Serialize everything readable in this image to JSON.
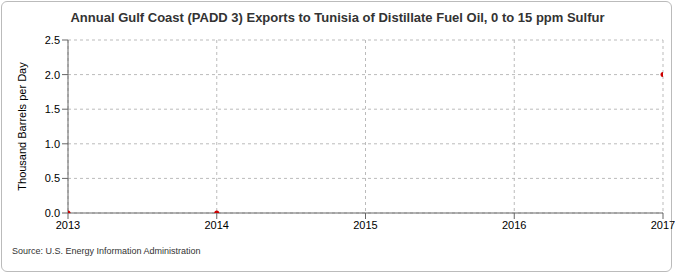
{
  "chart_data": {
    "type": "scatter",
    "title": "Annual Gulf Coast (PADD 3) Exports to Tunisia of Distillate Fuel Oil, 0 to 15 ppm Sulfur",
    "y_label": "Thousand Barrels per Day",
    "source": "Source: U.S. Energy Information Administration",
    "x": [
      2013,
      2014,
      2017
    ],
    "values": [
      0,
      0,
      2.0
    ],
    "color": "#cc0000",
    "xlim": [
      2013,
      2017
    ],
    "xticks": [
      2013,
      2014,
      2015,
      2016,
      2017
    ],
    "ylim": [
      0,
      2.5
    ],
    "yticks": [
      {
        "value": 0,
        "label": "0.0"
      },
      {
        "value": 0.5,
        "label": "0.5"
      },
      {
        "value": 1.0,
        "label": "1.0"
      },
      {
        "value": 1.5,
        "label": "1.5"
      },
      {
        "value": 2.0,
        "label": "2.0"
      },
      {
        "value": 2.5,
        "label": "2.5"
      }
    ],
    "grid": true
  }
}
